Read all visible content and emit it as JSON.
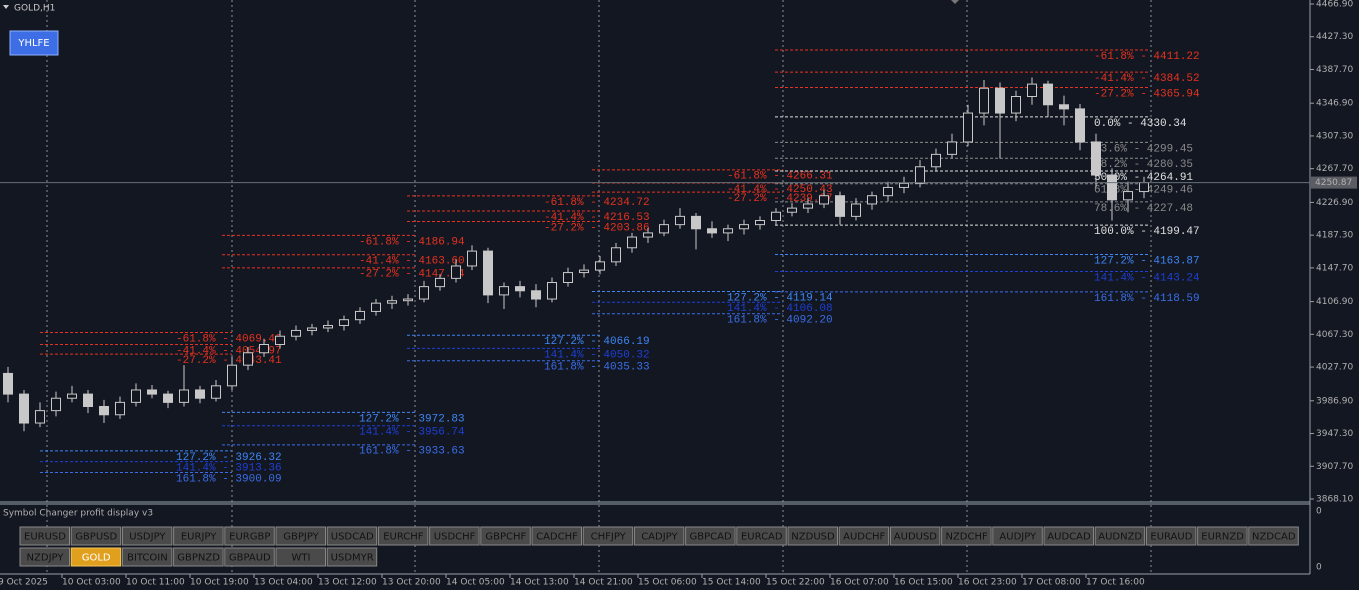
{
  "header": {
    "symbol": "GOLD,H1",
    "button": "YHLFE"
  },
  "chart_data": {
    "type": "candlestick",
    "ylim": [
      3868.1,
      4466.9
    ],
    "yticks": [
      {
        "value": 4466.9,
        "label": "4466.90"
      },
      {
        "value": 4427.3,
        "label": "4427.30"
      },
      {
        "value": 4387.7,
        "label": "4387.70"
      },
      {
        "value": 4346.9,
        "label": "4346.90"
      },
      {
        "value": 4307.3,
        "label": "4307.30"
      },
      {
        "value": 4267.7,
        "label": "4267.70"
      },
      {
        "value": 4226.9,
        "label": "4226.90"
      },
      {
        "value": 4187.3,
        "label": "4187.30"
      },
      {
        "value": 4147.7,
        "label": "4147.70"
      },
      {
        "value": 4106.9,
        "label": "4106.90"
      },
      {
        "value": 4067.3,
        "label": "4067.30"
      },
      {
        "value": 4027.7,
        "label": "4027.70"
      },
      {
        "value": 3986.9,
        "label": "3986.90"
      },
      {
        "value": 3947.3,
        "label": "3947.30"
      },
      {
        "value": 3907.7,
        "label": "3907.70"
      },
      {
        "value": 3868.1,
        "label": "3868.10"
      }
    ],
    "current_price": 4250.87,
    "x_labels": [
      "9 Oct 2025",
      "10 Oct 03:00",
      "10 Oct 11:00",
      "10 Oct 19:00",
      "13 Oct 04:00",
      "13 Oct 12:00",
      "13 Oct 20:00",
      "14 Oct 05:00",
      "14 Oct 13:00",
      "14 Oct 21:00",
      "15 Oct 06:00",
      "15 Oct 14:00",
      "15 Oct 22:00",
      "16 Oct 07:00",
      "16 Oct 15:00",
      "16 Oct 23:00",
      "17 Oct 08:00",
      "17 Oct 16:00"
    ],
    "candle_colors": {
      "up": "#131722",
      "down": "#c8c8c8",
      "wick": "#c8c8c8"
    },
    "candles": [
      [
        4020,
        4028,
        3985,
        3995
      ],
      [
        3995,
        4000,
        3950,
        3960
      ],
      [
        3960,
        3985,
        3955,
        3975
      ],
      [
        3975,
        3998,
        3968,
        3990
      ],
      [
        3990,
        4005,
        3985,
        3995
      ],
      [
        3995,
        4000,
        3972,
        3980
      ],
      [
        3980,
        3988,
        3960,
        3970
      ],
      [
        3970,
        3992,
        3965,
        3985
      ],
      [
        3985,
        4008,
        3980,
        4000
      ],
      [
        4000,
        4006,
        3990,
        3995
      ],
      [
        3995,
        3999,
        3978,
        3985
      ],
      [
        3985,
        4030,
        3980,
        4000
      ],
      [
        4000,
        4005,
        3984,
        3990
      ],
      [
        3990,
        4012,
        3986,
        4005
      ],
      [
        4005,
        4040,
        4000,
        4030
      ],
      [
        4030,
        4052,
        4024,
        4045
      ],
      [
        4045,
        4062,
        4040,
        4055
      ],
      [
        4055,
        4072,
        4050,
        4065
      ],
      [
        4065,
        4078,
        4060,
        4072
      ],
      [
        4072,
        4080,
        4066,
        4075
      ],
      [
        4075,
        4084,
        4070,
        4078
      ],
      [
        4078,
        4090,
        4072,
        4085
      ],
      [
        4085,
        4100,
        4080,
        4095
      ],
      [
        4095,
        4110,
        4090,
        4105
      ],
      [
        4105,
        4114,
        4098,
        4108
      ],
      [
        4108,
        4116,
        4102,
        4110
      ],
      [
        4110,
        4132,
        4106,
        4125
      ],
      [
        4125,
        4140,
        4120,
        4135
      ],
      [
        4135,
        4158,
        4130,
        4150
      ],
      [
        4150,
        4175,
        4145,
        4168
      ],
      [
        4168,
        4172,
        4105,
        4115
      ],
      [
        4115,
        4130,
        4098,
        4125
      ],
      [
        4125,
        4132,
        4112,
        4120
      ],
      [
        4120,
        4128,
        4100,
        4110
      ],
      [
        4110,
        4136,
        4106,
        4130
      ],
      [
        4130,
        4148,
        4125,
        4142
      ],
      [
        4142,
        4152,
        4136,
        4145
      ],
      [
        4145,
        4162,
        4140,
        4155
      ],
      [
        4155,
        4178,
        4150,
        4172
      ],
      [
        4172,
        4190,
        4166,
        4185
      ],
      [
        4185,
        4196,
        4178,
        4190
      ],
      [
        4190,
        4206,
        4186,
        4200
      ],
      [
        4200,
        4220,
        4195,
        4210
      ],
      [
        4210,
        4214,
        4170,
        4195
      ],
      [
        4195,
        4204,
        4184,
        4190
      ],
      [
        4190,
        4200,
        4180,
        4195
      ],
      [
        4195,
        4206,
        4188,
        4200
      ],
      [
        4200,
        4210,
        4194,
        4205
      ],
      [
        4205,
        4220,
        4200,
        4215
      ],
      [
        4215,
        4226,
        4210,
        4220
      ],
      [
        4220,
        4232,
        4214,
        4225
      ],
      [
        4225,
        4242,
        4220,
        4235
      ],
      [
        4235,
        4240,
        4200,
        4210
      ],
      [
        4210,
        4232,
        4205,
        4225
      ],
      [
        4225,
        4240,
        4218,
        4235
      ],
      [
        4235,
        4252,
        4228,
        4245
      ],
      [
        4245,
        4258,
        4238,
        4250
      ],
      [
        4250,
        4278,
        4245,
        4270
      ],
      [
        4270,
        4292,
        4264,
        4285
      ],
      [
        4285,
        4310,
        4280,
        4300
      ],
      [
        4300,
        4345,
        4295,
        4335
      ],
      [
        4335,
        4375,
        4320,
        4365
      ],
      [
        4365,
        4372,
        4280,
        4335
      ],
      [
        4335,
        4362,
        4325,
        4355
      ],
      [
        4355,
        4378,
        4345,
        4370
      ],
      [
        4370,
        4374,
        4330,
        4345
      ],
      [
        4345,
        4356,
        4320,
        4340
      ],
      [
        4340,
        4346,
        4290,
        4300
      ],
      [
        4300,
        4310,
        4245,
        4260
      ],
      [
        4260,
        4268,
        4205,
        4230
      ],
      [
        4230,
        4252,
        4215,
        4240
      ],
      [
        4240,
        4258,
        4232,
        4250.87
      ]
    ],
    "fib_groups": [
      {
        "levels": [
          {
            "value": 4069.46,
            "label": "-61.8% - 4069.46",
            "color": "#e8321e"
          },
          {
            "value": 4054.97,
            "label": "-41.4% - 4054.97",
            "color": "#e8321e"
          },
          {
            "value": 4043.41,
            "label": "-27.2% - 4043.41",
            "color": "#e8321e"
          },
          {
            "value": 3926.32,
            "label": "127.2% - 3926.32",
            "color": "#3d86f5"
          },
          {
            "value": 3913.36,
            "label": "141.4% - 3913.36",
            "color": "#1d3fd6"
          },
          {
            "value": 3900.09,
            "label": "161.8% - 3900.09",
            "color": "#3a6ee8"
          }
        ]
      },
      {
        "levels": [
          {
            "value": 4186.94,
            "label": "-61.8% - 4186.94",
            "color": "#e8321e"
          },
          {
            "value": 4163.6,
            "label": "-41.4% - 4163.60",
            "color": "#e8321e"
          },
          {
            "value": 4147.74,
            "label": "-27.2% - 4147.74",
            "color": "#e8321e"
          },
          {
            "value": 3972.83,
            "label": "127.2% - 3972.83",
            "color": "#3d86f5"
          },
          {
            "value": 3956.74,
            "label": "141.4% - 3956.74",
            "color": "#1d3fd6"
          },
          {
            "value": 3933.63,
            "label": "161.8% - 3933.63",
            "color": "#3a6ee8"
          }
        ]
      },
      {
        "levels": [
          {
            "value": 4234.72,
            "label": "-61.8% - 4234.72",
            "color": "#e8321e"
          },
          {
            "value": 4216.53,
            "label": "-41.4% - 4216.53",
            "color": "#e8321e"
          },
          {
            "value": 4203.86,
            "label": "-27.2% - 4203.86",
            "color": "#e8321e"
          },
          {
            "value": 4066.19,
            "label": "127.2% - 4066.19",
            "color": "#3d86f5"
          },
          {
            "value": 4050.32,
            "label": "141.4% - 4050.32",
            "color": "#1d3fd6"
          },
          {
            "value": 4035.33,
            "label": "161.8% - 4035.33",
            "color": "#3a6ee8"
          }
        ]
      },
      {
        "levels": [
          {
            "value": 4266.31,
            "label": "-61.8% - 4266.31",
            "color": "#e8321e"
          },
          {
            "value": 4250.43,
            "label": "-41.4% - 4250.43",
            "color": "#e8321e"
          },
          {
            "value": 4239.37,
            "label": "-27.2% - 4239.37",
            "color": "#e8321e"
          },
          {
            "value": 4119.14,
            "label": "127.2% - 4119.14",
            "color": "#3d86f5"
          },
          {
            "value": 4106.08,
            "label": "141.4% - 4106.08",
            "color": "#1d3fd6"
          },
          {
            "value": 4092.2,
            "label": "161.8% - 4092.20",
            "color": "#3a6ee8"
          }
        ]
      },
      {
        "levels": [
          {
            "value": 4411.22,
            "label": "-61.8% - 4411.22",
            "color": "#e8321e"
          },
          {
            "value": 4384.52,
            "label": "-41.4% - 4384.52",
            "color": "#e8321e"
          },
          {
            "value": 4365.94,
            "label": "-27.2% - 4365.94",
            "color": "#e8321e"
          },
          {
            "value": 4330.34,
            "label": "0.0% - 4330.34",
            "color": "#e0e0e0"
          },
          {
            "value": 4299.45,
            "label": "23.6% - 4299.45",
            "color": "#8a8a8a"
          },
          {
            "value": 4280.35,
            "label": "38.2% - 4280.35",
            "color": "#8a8a8a"
          },
          {
            "value": 4264.91,
            "label": "50.0% - 4264.91",
            "color": "#e0e0e0"
          },
          {
            "value": 4249.46,
            "label": "61.8% - 4249.46",
            "color": "#8a8a8a"
          },
          {
            "value": 4227.48,
            "label": "78.6% - 4227.48",
            "color": "#8a8a8a"
          },
          {
            "value": 4199.47,
            "label": "100.0% - 4199.47",
            "color": "#e0e0e0"
          },
          {
            "value": 4163.87,
            "label": "127.2% - 4163.87",
            "color": "#3d86f5"
          },
          {
            "value": 4143.24,
            "label": "141.4% - 4143.24",
            "color": "#1d3fd6"
          },
          {
            "value": 4118.59,
            "label": "161.8% - 4118.59",
            "color": "#3a6ee8"
          }
        ]
      }
    ]
  },
  "panel": {
    "title": "Symbol Changer profit display v3",
    "yticks": [
      0,
      0
    ],
    "buttons": [
      [
        "EURUSD",
        "GBPUSD",
        "USDJPY",
        "EURJPY",
        "EURGBP",
        "GBPJPY",
        "USDCAD",
        "EURCHF",
        "USDCHF",
        "GBPCHF",
        "CADCHF",
        "CHFJPY",
        "CADJPY",
        "GBPCAD",
        "EURCAD",
        "NZDUSD",
        "AUDCHF",
        "AUDUSD",
        "NZDCHF",
        "AUDJPY",
        "AUDCAD",
        "AUDNZD",
        "EURAUD",
        "EURNZD",
        "NZDCAD"
      ],
      [
        "NZDJPY",
        "GOLD",
        "BITCOIN",
        "GBPNZD",
        "GBPAUD",
        "WTI",
        "USDMYR"
      ]
    ],
    "active_button": "GOLD"
  }
}
